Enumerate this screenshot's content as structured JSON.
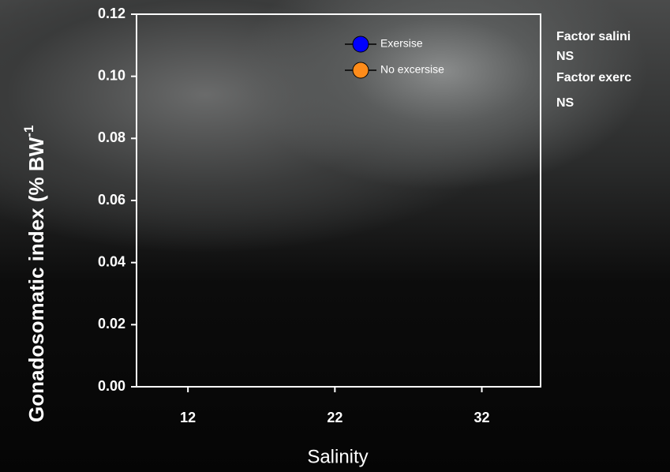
{
  "chart_data": {
    "type": "line",
    "y_label": "Gonadosomatic index (% BW",
    "y_label_superscript": "-1",
    "x_label": "Salinity",
    "x": [],
    "series": [
      {
        "name": "Exersise",
        "color": "#0000ff",
        "values": []
      },
      {
        "name": "No excersise",
        "color": "#ff8c1a",
        "values": []
      }
    ],
    "xlim": [
      8.5,
      36
    ],
    "xticks": [
      12,
      22,
      32
    ],
    "ylim": [
      0,
      0.12
    ],
    "yticks": [
      {
        "value": 0,
        "label": "0.00"
      },
      {
        "value": 0.02,
        "label": "0.02"
      },
      {
        "value": 0.04,
        "label": "0.04"
      },
      {
        "value": 0.06,
        "label": "0.06"
      },
      {
        "value": 0.08,
        "label": "0.08"
      },
      {
        "value": 0.1,
        "label": "0.10"
      },
      {
        "value": 0.12,
        "label": "0.12"
      }
    ],
    "annotations": [
      "Factor salini",
      "NS",
      "Factor exerc",
      "NS"
    ]
  }
}
